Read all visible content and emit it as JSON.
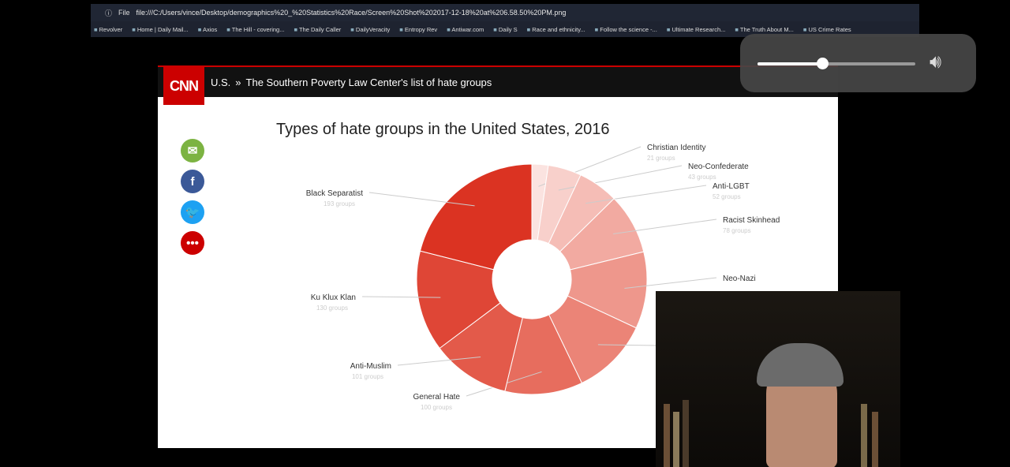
{
  "browser": {
    "file_label": "File",
    "url": "file:///C:/Users/vince/Desktop/demographics%20_%20Statistics%20Race/Screen%20Shot%202017-12-18%20at%206.58.50%20PM.png",
    "bookmarks": [
      "Revolver",
      "Home | Daily Mail...",
      "Axios",
      "The Hill - covering...",
      "The Daily Caller",
      "DailyVeracity",
      "Entropy Rev",
      "Antiwar.com",
      "Daily S",
      "Race and ethnicity...",
      "Follow the science -...",
      "Ultimate Research...",
      "The Truth About M...",
      "US Crime Rates"
    ]
  },
  "cnn": {
    "logo": "CNN",
    "section": "U.S.",
    "separator": "»",
    "headline": "The Southern Poverty Law Center's list of hate groups"
  },
  "share": [
    {
      "icon": "email-icon",
      "color": "#7cb342",
      "glyph": "✉"
    },
    {
      "icon": "facebook-icon",
      "color": "#3b5998",
      "glyph": "f"
    },
    {
      "icon": "twitter-icon",
      "color": "#1da1f2",
      "glyph": "🐦"
    },
    {
      "icon": "more-icon",
      "color": "#cc0000",
      "glyph": "•••"
    }
  ],
  "volume": {
    "level": 0.41
  },
  "chart_data": {
    "type": "pie",
    "title": "Types of hate groups in the United States, 2016",
    "unit": "groups",
    "slices": [
      {
        "label": "Christian Identity",
        "value": 21,
        "value_label": "21 groups",
        "color": "#fbe3e0"
      },
      {
        "label": "Neo-Confederate",
        "value": 43,
        "value_label": "43 groups",
        "color": "#f8d0cb"
      },
      {
        "label": "Anti-LGBT",
        "value": 52,
        "value_label": "52 groups",
        "color": "#f5bdb6"
      },
      {
        "label": "Racist Skinhead",
        "value": 78,
        "value_label": "78 groups",
        "color": "#f2aaa1"
      },
      {
        "label": "Neo-Nazi",
        "value": 99,
        "value_label": "",
        "color": "#ee978c"
      },
      {
        "label": "",
        "value": 100,
        "value_label": "",
        "color": "#eb8477"
      },
      {
        "label": "General Hate",
        "value": 100,
        "value_label": "100 groups",
        "color": "#e76d5e"
      },
      {
        "label": "Anti-Muslim",
        "value": 101,
        "value_label": "101 groups",
        "color": "#e35a4a"
      },
      {
        "label": "Ku Klux Klan",
        "value": 130,
        "value_label": "130 groups",
        "color": "#df4636"
      },
      {
        "label": "Black Separatist",
        "value": 193,
        "value_label": "193 groups",
        "color": "#db3322"
      }
    ]
  }
}
